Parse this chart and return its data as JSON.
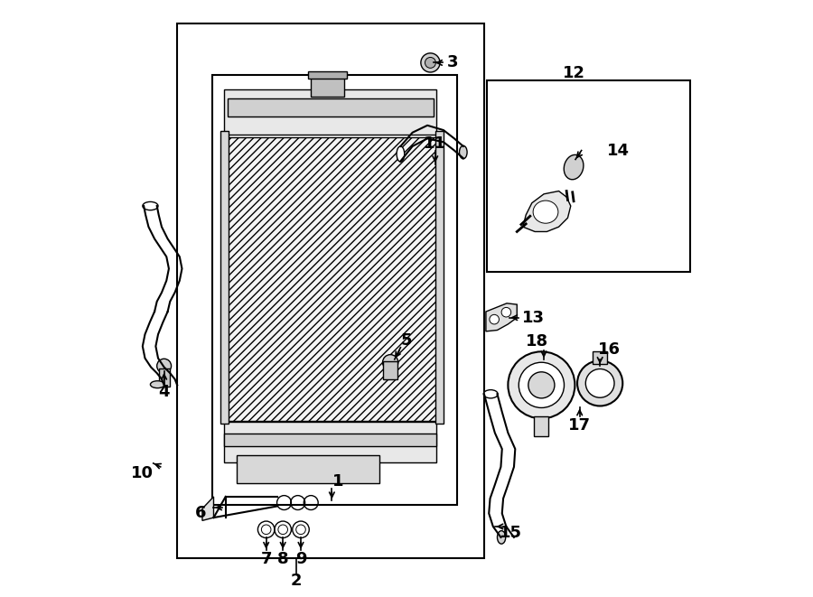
{
  "bg_color": "#ffffff",
  "line_color": "#000000",
  "label_fontsize": 13
}
